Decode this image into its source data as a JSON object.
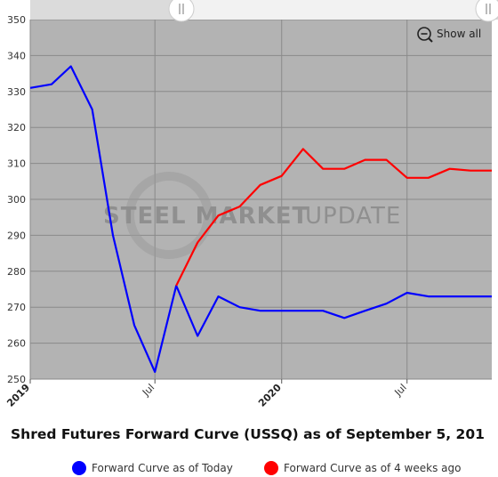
{
  "colors": {
    "plot_bg": "#b3b3b3",
    "grid": "#8a8a8a",
    "today": "#0000ff",
    "four_weeks": "#ff0000",
    "watermark": "#8f8f8f"
  },
  "zoom": {
    "show_all_label": "Show all",
    "icon": "zoom-out-icon"
  },
  "watermark": {
    "bold": "STEEL MARKET",
    "light": "UPDATE"
  },
  "chart_data": {
    "type": "line",
    "title": "Shred Futures Forward Curve (USSQ) as of September 5, 201",
    "xlabel": "",
    "ylabel": "",
    "ylim": [
      250,
      350
    ],
    "xlim": [
      "2019-01-01",
      "2020-11-01"
    ],
    "grid": true,
    "legend_position": "bottom",
    "y_ticks": [
      {
        "value": 250,
        "label": "250"
      },
      {
        "value": 260,
        "label": "260"
      },
      {
        "value": 270,
        "label": "270"
      },
      {
        "value": 280,
        "label": "280"
      },
      {
        "value": 290,
        "label": "290"
      },
      {
        "value": 300,
        "label": "300"
      },
      {
        "value": 310,
        "label": "310"
      },
      {
        "value": 320,
        "label": "320"
      },
      {
        "value": 330,
        "label": "330"
      },
      {
        "value": 340,
        "label": "340"
      },
      {
        "value": 350,
        "label": "350"
      }
    ],
    "x_ticks": [
      {
        "value": "2019-01-01",
        "label": "2019",
        "bold": true
      },
      {
        "value": "2019-07-01",
        "label": "Jul",
        "bold": false
      },
      {
        "value": "2020-01-01",
        "label": "2020",
        "bold": true
      },
      {
        "value": "2020-07-01",
        "label": "Jul",
        "bold": false
      }
    ],
    "series": [
      {
        "name": "Forward Curve as of Today",
        "color": "#0000ff",
        "points": [
          {
            "x": "2019-01-01",
            "y": 331
          },
          {
            "x": "2019-02-01",
            "y": 332
          },
          {
            "x": "2019-03-01",
            "y": 337
          },
          {
            "x": "2019-04-01",
            "y": 325
          },
          {
            "x": "2019-05-01",
            "y": 290
          },
          {
            "x": "2019-06-01",
            "y": 265
          },
          {
            "x": "2019-07-01",
            "y": 252
          },
          {
            "x": "2019-08-01",
            "y": 276
          },
          {
            "x": "2019-09-01",
            "y": 262
          },
          {
            "x": "2019-10-01",
            "y": 273
          },
          {
            "x": "2019-11-01",
            "y": 270
          },
          {
            "x": "2019-12-01",
            "y": 269
          },
          {
            "x": "2020-01-01",
            "y": 269
          },
          {
            "x": "2020-02-01",
            "y": 269
          },
          {
            "x": "2020-03-01",
            "y": 269
          },
          {
            "x": "2020-04-01",
            "y": 267
          },
          {
            "x": "2020-05-01",
            "y": 269
          },
          {
            "x": "2020-06-01",
            "y": 271
          },
          {
            "x": "2020-07-01",
            "y": 274
          },
          {
            "x": "2020-08-01",
            "y": 273
          },
          {
            "x": "2020-09-01",
            "y": 273
          },
          {
            "x": "2020-10-01",
            "y": 273
          },
          {
            "x": "2020-11-01",
            "y": 273
          }
        ]
      },
      {
        "name": "Forward Curve as of 4 weeks ago",
        "color": "#ff0000",
        "points": [
          {
            "x": "2019-08-01",
            "y": 276
          },
          {
            "x": "2019-09-01",
            "y": 288
          },
          {
            "x": "2019-10-01",
            "y": 295.5
          },
          {
            "x": "2019-11-01",
            "y": 298
          },
          {
            "x": "2019-12-01",
            "y": 304
          },
          {
            "x": "2020-01-01",
            "y": 306.5
          },
          {
            "x": "2020-02-01",
            "y": 314
          },
          {
            "x": "2020-03-01",
            "y": 308.5
          },
          {
            "x": "2020-04-01",
            "y": 308.5
          },
          {
            "x": "2020-05-01",
            "y": 311
          },
          {
            "x": "2020-06-01",
            "y": 311
          },
          {
            "x": "2020-07-01",
            "y": 306
          },
          {
            "x": "2020-08-01",
            "y": 306
          },
          {
            "x": "2020-09-01",
            "y": 308.5
          },
          {
            "x": "2020-10-01",
            "y": 308
          },
          {
            "x": "2020-11-01",
            "y": 308
          }
        ]
      }
    ]
  }
}
